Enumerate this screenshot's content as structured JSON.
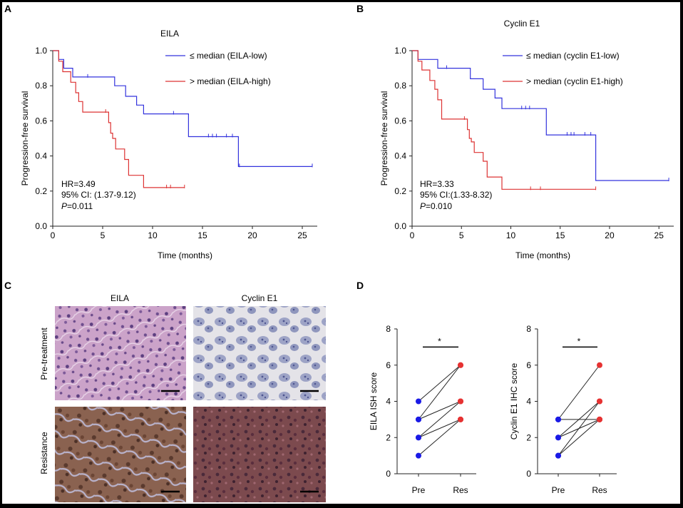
{
  "panels": {
    "A": {
      "letter": "A",
      "title": "EILA",
      "legend": [
        "≤ median (EILA-low)",
        "> median (EILA-high)"
      ],
      "stats": {
        "hr": "HR=3.49",
        "ci": "95% CI: (1.37-9.12)",
        "p_label": "P",
        "p_value": "=0.011"
      }
    },
    "B": {
      "letter": "B",
      "title": "Cyclin E1",
      "legend": [
        "≤ median (cyclin E1-low)",
        "> median (cyclin E1-high)"
      ],
      "stats": {
        "hr": "HR=3.33",
        "ci": "95% CI:(1.33-8.32)",
        "p_label": "P",
        "p_value": "=0.010"
      }
    },
    "C": {
      "letter": "C",
      "col_labels": [
        "EILA",
        "Cyclin E1"
      ],
      "row_labels": [
        "Pre-treatment",
        "Resistance"
      ]
    },
    "D": {
      "letter": "D",
      "sig_marker": "*"
    }
  },
  "colors": {
    "low_series": "#3333dd",
    "high_series": "#dd3333",
    "pre_dot": "#1a1ae6",
    "res_dot": "#e63232",
    "he_stain": "#c59bc4",
    "ihc_stain_light": "#c8cbe0",
    "ihc_stain_dark": "#7a5a4a"
  },
  "chart_data": [
    {
      "type": "line",
      "panel": "A",
      "title": "EILA",
      "xlabel": "Time (months)",
      "ylabel": "Progression-free survival",
      "xlim": [
        0,
        26.5
      ],
      "ylim": [
        0,
        1.0
      ],
      "xticks": [
        0,
        5,
        10,
        15,
        20,
        25
      ],
      "yticks": [
        "0.0",
        "0.2",
        "0.4",
        "0.6",
        "0.8",
        "1.0"
      ],
      "series": [
        {
          "name": "≤ median (EILA-low)",
          "steps": [
            [
              0,
              1.0
            ],
            [
              0.6,
              1.0
            ],
            [
              0.6,
              0.95
            ],
            [
              1.1,
              0.95
            ],
            [
              1.1,
              0.9
            ],
            [
              2.0,
              0.9
            ],
            [
              2.0,
              0.85
            ],
            [
              6.2,
              0.85
            ],
            [
              6.2,
              0.8
            ],
            [
              7.3,
              0.8
            ],
            [
              7.3,
              0.74
            ],
            [
              8.4,
              0.74
            ],
            [
              8.4,
              0.69
            ],
            [
              9.1,
              0.69
            ],
            [
              9.1,
              0.64
            ],
            [
              13.6,
              0.64
            ],
            [
              13.6,
              0.51
            ],
            [
              18.6,
              0.51
            ],
            [
              18.6,
              0.34
            ],
            [
              26.0,
              0.34
            ]
          ],
          "censored": [
            [
              3.5,
              0.85
            ],
            [
              12.1,
              0.64
            ],
            [
              15.6,
              0.51
            ],
            [
              16.0,
              0.51
            ],
            [
              16.4,
              0.51
            ],
            [
              17.4,
              0.51
            ],
            [
              18.0,
              0.51
            ],
            [
              18.7,
              0.34
            ],
            [
              26.0,
              0.34
            ]
          ]
        },
        {
          "name": "> median (EILA-high)",
          "steps": [
            [
              0,
              1.0
            ],
            [
              0.6,
              1.0
            ],
            [
              0.6,
              0.94
            ],
            [
              1.0,
              0.94
            ],
            [
              1.0,
              0.88
            ],
            [
              1.8,
              0.88
            ],
            [
              1.8,
              0.82
            ],
            [
              2.3,
              0.82
            ],
            [
              2.3,
              0.76
            ],
            [
              2.6,
              0.76
            ],
            [
              2.6,
              0.71
            ],
            [
              3.0,
              0.71
            ],
            [
              3.0,
              0.65
            ],
            [
              5.6,
              0.65
            ],
            [
              5.6,
              0.59
            ],
            [
              5.8,
              0.59
            ],
            [
              5.8,
              0.53
            ],
            [
              6.0,
              0.53
            ],
            [
              6.0,
              0.5
            ],
            [
              6.3,
              0.5
            ],
            [
              6.3,
              0.44
            ],
            [
              7.2,
              0.44
            ],
            [
              7.2,
              0.38
            ],
            [
              7.6,
              0.38
            ],
            [
              7.6,
              0.29
            ],
            [
              9.1,
              0.29
            ],
            [
              9.1,
              0.22
            ],
            [
              13.2,
              0.22
            ]
          ],
          "censored": [
            [
              5.3,
              0.65
            ],
            [
              11.4,
              0.22
            ],
            [
              11.8,
              0.22
            ],
            [
              13.2,
              0.22
            ]
          ]
        }
      ]
    },
    {
      "type": "line",
      "panel": "B",
      "title": "Cyclin E1",
      "xlabel": "Time (months)",
      "ylabel": "Progression-free survival",
      "xlim": [
        0,
        26.5
      ],
      "ylim": [
        0,
        1.0
      ],
      "xticks": [
        0,
        5,
        10,
        15,
        20,
        25
      ],
      "yticks": [
        "0.0",
        "0.2",
        "0.4",
        "0.6",
        "0.8",
        "1.0"
      ],
      "series": [
        {
          "name": "≤ median (cyclin E1-low)",
          "steps": [
            [
              0,
              1.0
            ],
            [
              0.6,
              1.0
            ],
            [
              0.6,
              0.95
            ],
            [
              2.6,
              0.95
            ],
            [
              2.6,
              0.9
            ],
            [
              5.9,
              0.9
            ],
            [
              5.9,
              0.84
            ],
            [
              7.2,
              0.84
            ],
            [
              7.2,
              0.78
            ],
            [
              8.4,
              0.78
            ],
            [
              8.4,
              0.73
            ],
            [
              9.1,
              0.73
            ],
            [
              9.1,
              0.67
            ],
            [
              13.6,
              0.67
            ],
            [
              13.6,
              0.52
            ],
            [
              18.6,
              0.52
            ],
            [
              18.6,
              0.26
            ],
            [
              26.0,
              0.26
            ]
          ],
          "censored": [
            [
              3.5,
              0.9
            ],
            [
              11.1,
              0.67
            ],
            [
              11.5,
              0.67
            ],
            [
              11.9,
              0.67
            ],
            [
              15.7,
              0.52
            ],
            [
              16.1,
              0.52
            ],
            [
              16.4,
              0.52
            ],
            [
              17.5,
              0.52
            ],
            [
              18.1,
              0.52
            ],
            [
              26.0,
              0.26
            ]
          ]
        },
        {
          "name": "> median (cyclin E1-high)",
          "steps": [
            [
              0,
              1.0
            ],
            [
              0.6,
              1.0
            ],
            [
              0.6,
              0.94
            ],
            [
              1.0,
              0.94
            ],
            [
              1.0,
              0.89
            ],
            [
              1.8,
              0.89
            ],
            [
              1.8,
              0.83
            ],
            [
              2.3,
              0.83
            ],
            [
              2.3,
              0.78
            ],
            [
              2.6,
              0.78
            ],
            [
              2.6,
              0.72
            ],
            [
              3.0,
              0.72
            ],
            [
              3.0,
              0.61
            ],
            [
              5.6,
              0.61
            ],
            [
              5.6,
              0.55
            ],
            [
              5.8,
              0.55
            ],
            [
              5.8,
              0.5
            ],
            [
              6.0,
              0.5
            ],
            [
              6.0,
              0.48
            ],
            [
              6.3,
              0.48
            ],
            [
              6.3,
              0.42
            ],
            [
              7.2,
              0.42
            ],
            [
              7.2,
              0.37
            ],
            [
              7.6,
              0.37
            ],
            [
              7.6,
              0.28
            ],
            [
              9.1,
              0.28
            ],
            [
              9.1,
              0.21
            ],
            [
              18.6,
              0.21
            ]
          ],
          "censored": [
            [
              5.3,
              0.61
            ],
            [
              12.0,
              0.21
            ],
            [
              13.0,
              0.21
            ],
            [
              18.6,
              0.21
            ]
          ]
        }
      ]
    },
    {
      "type": "scatter",
      "panel": "D",
      "ylabel": "EILA ISH score",
      "categories": [
        "Pre",
        "Res"
      ],
      "ylim": [
        0,
        8
      ],
      "yticks": [
        "0",
        "2",
        "4",
        "6",
        "8"
      ],
      "pairs": [
        [
          4,
          6
        ],
        [
          3,
          6
        ],
        [
          3,
          4
        ],
        [
          2,
          4
        ],
        [
          2,
          3
        ],
        [
          1,
          3
        ]
      ],
      "significance": "*"
    },
    {
      "type": "scatter",
      "panel": "D",
      "ylabel": "Cyclin E1 IHC score",
      "categories": [
        "Pre",
        "Res"
      ],
      "ylim": [
        0,
        8
      ],
      "yticks": [
        "0",
        "2",
        "4",
        "6",
        "8"
      ],
      "pairs": [
        [
          3,
          6
        ],
        [
          3,
          3
        ],
        [
          2,
          4
        ],
        [
          2,
          3
        ],
        [
          1,
          4
        ],
        [
          1,
          3
        ]
      ],
      "significance": "*"
    }
  ]
}
